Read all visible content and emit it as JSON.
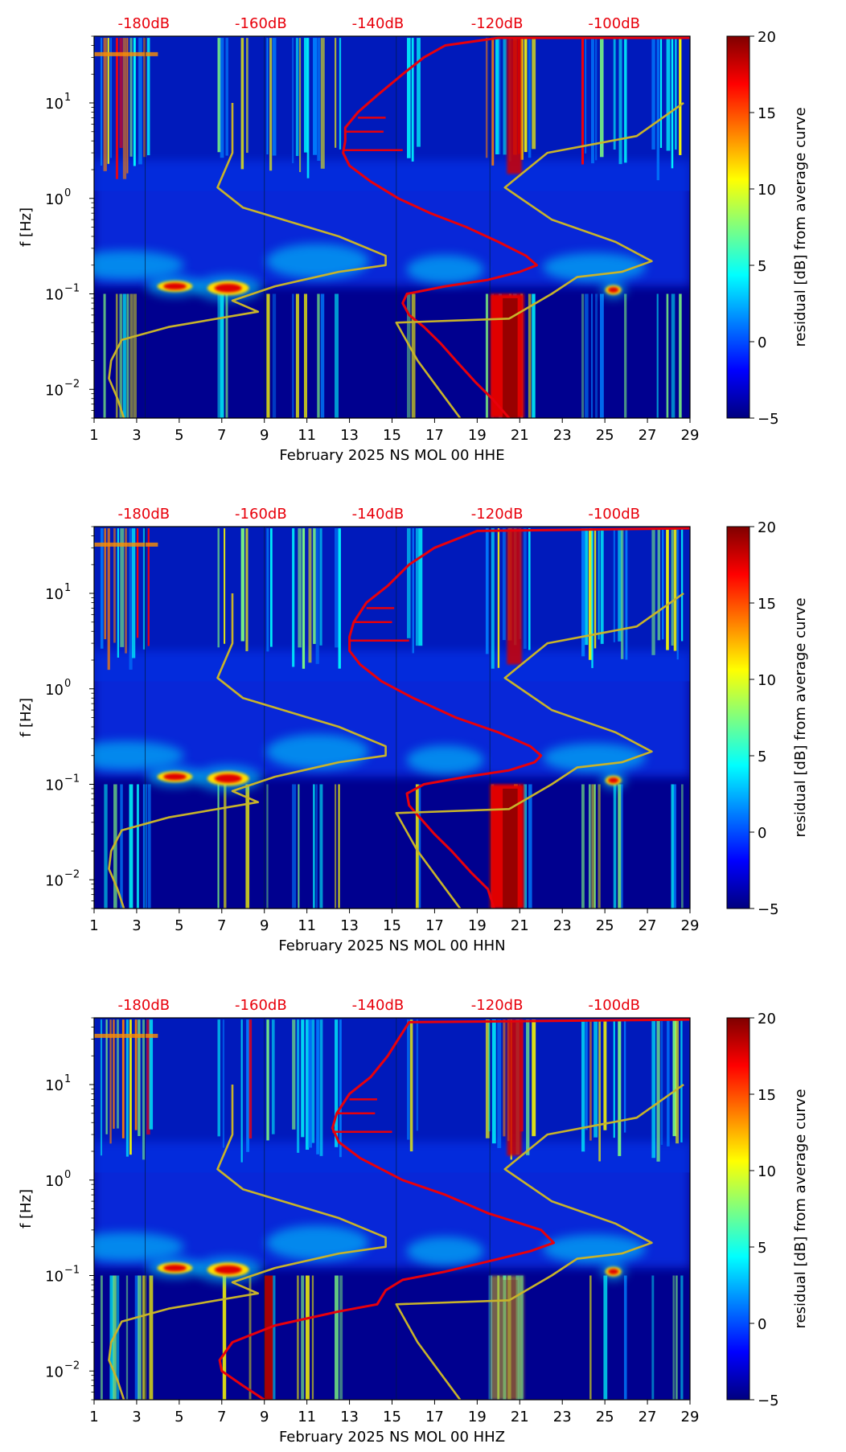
{
  "colors": {
    "noise_curve": "#e8000b",
    "model_curve": "#c8b32a",
    "db_labels": "#e8000b",
    "colormap": [
      "#00007f",
      "#0000ff",
      "#007fff",
      "#00ffff",
      "#7fff7f",
      "#ffff00",
      "#ff7f00",
      "#ff0000",
      "#7f0000"
    ]
  },
  "chart_data": [
    {
      "type": "heatmap",
      "panel": "top",
      "xlabel": "February 2025 NS MOL 00 HHE",
      "ylabel": "f [Hz]",
      "x_ticks": [
        "1",
        "3",
        "5",
        "7",
        "9",
        "11",
        "13",
        "15",
        "17",
        "19",
        "21",
        "23",
        "25",
        "27",
        "29"
      ],
      "xlim": [
        1,
        29
      ],
      "y_scale": "log",
      "ylim": [
        0.005,
        50
      ],
      "y_ticks": [
        0.01,
        0.1,
        1,
        10
      ],
      "y_tick_labels": [
        "10",
        "10",
        "10",
        "10"
      ],
      "y_tick_exponents": [
        "−2",
        "−1",
        "0",
        "1"
      ],
      "top_labels": [
        "-180dB",
        "-160dB",
        "-140dB",
        "-120dB",
        "-100dB"
      ],
      "colorbar": {
        "label": "residual [dB] from average curve",
        "ticks": [
          "−5",
          "0",
          "5",
          "10",
          "15",
          "20"
        ],
        "range": [
          -5,
          20
        ]
      },
      "series": [
        {
          "role": "red-curve",
          "points": [
            [
              20.5,
              0.005
            ],
            [
              19.7,
              0.008
            ],
            [
              18.9,
              0.012
            ],
            [
              18.0,
              0.02
            ],
            [
              17.3,
              0.03
            ],
            [
              16.5,
              0.045
            ],
            [
              15.8,
              0.06
            ],
            [
              15.5,
              0.08
            ],
            [
              15.7,
              0.1
            ],
            [
              17.5,
              0.12
            ],
            [
              19.5,
              0.14
            ],
            [
              21.0,
              0.17
            ],
            [
              21.8,
              0.2
            ],
            [
              21.3,
              0.25
            ],
            [
              20.0,
              0.35
            ],
            [
              18.5,
              0.5
            ],
            [
              16.8,
              0.7
            ],
            [
              15.3,
              1.0
            ],
            [
              14.0,
              1.5
            ],
            [
              13.0,
              2.2
            ],
            [
              12.7,
              3.0
            ],
            [
              12.8,
              4.0
            ],
            [
              12.8,
              5.5
            ],
            [
              13.4,
              8
            ],
            [
              14.3,
              12
            ],
            [
              15.5,
              20
            ],
            [
              16.5,
              30
            ],
            [
              17.5,
              40
            ],
            [
              20,
              48
            ],
            [
              29,
              48
            ]
          ]
        },
        {
          "role": "yellow-curve",
          "points": [
            [
              2.4,
              0.005
            ],
            [
              2.1,
              0.008
            ],
            [
              1.7,
              0.013
            ],
            [
              1.8,
              0.02
            ],
            [
              2.3,
              0.033
            ],
            [
              4.5,
              0.045
            ],
            [
              8.7,
              0.065
            ],
            [
              7.5,
              0.085
            ],
            [
              9.5,
              0.12
            ],
            [
              12.5,
              0.17
            ],
            [
              14.7,
              0.2
            ],
            [
              14.7,
              0.25
            ],
            [
              12.5,
              0.4
            ],
            [
              8.0,
              0.8
            ],
            [
              6.8,
              1.3
            ],
            [
              7.5,
              3.0
            ],
            [
              7.5,
              10
            ]
          ]
        },
        {
          "role": "yellow-curve",
          "points": [
            [
              18.2,
              0.005
            ],
            [
              17.2,
              0.01
            ],
            [
              16.2,
              0.02
            ],
            [
              15.2,
              0.05
            ],
            [
              20.5,
              0.055
            ],
            [
              22.5,
              0.1
            ],
            [
              23.7,
              0.15
            ],
            [
              25.8,
              0.17
            ],
            [
              27.2,
              0.22
            ],
            [
              25.5,
              0.35
            ],
            [
              22.5,
              0.6
            ],
            [
              20.3,
              1.3
            ],
            [
              22.3,
              3.0
            ],
            [
              26.5,
              4.5
            ],
            [
              28.7,
              10
            ]
          ]
        }
      ]
    },
    {
      "type": "heatmap",
      "panel": "middle",
      "xlabel": "February 2025 NS MOL 00 HHN",
      "ylabel": "f [Hz]",
      "x_ticks": [
        "1",
        "3",
        "5",
        "7",
        "9",
        "11",
        "13",
        "15",
        "17",
        "19",
        "21",
        "23",
        "25",
        "27",
        "29"
      ],
      "xlim": [
        1,
        29
      ],
      "y_scale": "log",
      "ylim": [
        0.005,
        50
      ],
      "y_ticks": [
        0.01,
        0.1,
        1,
        10
      ],
      "y_tick_labels": [
        "10",
        "10",
        "10",
        "10"
      ],
      "y_tick_exponents": [
        "−2",
        "−1",
        "0",
        "1"
      ],
      "top_labels": [
        "-180dB",
        "-160dB",
        "-140dB",
        "-120dB",
        "-100dB"
      ],
      "colorbar": {
        "label": "residual [dB] from average curve",
        "ticks": [
          "−5",
          "0",
          "5",
          "10",
          "15",
          "20"
        ],
        "range": [
          -5,
          20
        ]
      },
      "series": [
        {
          "role": "red-curve",
          "points": [
            [
              19.8,
              0.005
            ],
            [
              19.5,
              0.008
            ],
            [
              18.7,
              0.012
            ],
            [
              17.8,
              0.02
            ],
            [
              17.0,
              0.03
            ],
            [
              16.3,
              0.045
            ],
            [
              15.8,
              0.06
            ],
            [
              15.7,
              0.08
            ],
            [
              16.5,
              0.1
            ],
            [
              18.5,
              0.12
            ],
            [
              20.5,
              0.14
            ],
            [
              21.7,
              0.17
            ],
            [
              22.0,
              0.2
            ],
            [
              21.5,
              0.25
            ],
            [
              20.0,
              0.35
            ],
            [
              18.0,
              0.5
            ],
            [
              16.0,
              0.8
            ],
            [
              14.5,
              1.2
            ],
            [
              13.5,
              1.8
            ],
            [
              13.0,
              2.5
            ],
            [
              13.0,
              3.5
            ],
            [
              13.2,
              5
            ],
            [
              13.8,
              8
            ],
            [
              14.8,
              12
            ],
            [
              15.8,
              20
            ],
            [
              17.0,
              30
            ],
            [
              19.0,
              45
            ],
            [
              29,
              48
            ]
          ]
        },
        {
          "role": "yellow-curve",
          "points": [
            [
              2.4,
              0.005
            ],
            [
              2.1,
              0.008
            ],
            [
              1.7,
              0.013
            ],
            [
              1.8,
              0.02
            ],
            [
              2.3,
              0.033
            ],
            [
              4.5,
              0.045
            ],
            [
              8.7,
              0.065
            ],
            [
              7.5,
              0.085
            ],
            [
              9.5,
              0.12
            ],
            [
              12.5,
              0.17
            ],
            [
              14.7,
              0.2
            ],
            [
              14.7,
              0.25
            ],
            [
              12.5,
              0.4
            ],
            [
              8.0,
              0.8
            ],
            [
              6.8,
              1.3
            ],
            [
              7.5,
              3.0
            ],
            [
              7.5,
              10
            ]
          ]
        },
        {
          "role": "yellow-curve",
          "points": [
            [
              18.2,
              0.005
            ],
            [
              17.2,
              0.01
            ],
            [
              16.2,
              0.02
            ],
            [
              15.2,
              0.05
            ],
            [
              20.5,
              0.055
            ],
            [
              22.5,
              0.1
            ],
            [
              23.7,
              0.15
            ],
            [
              25.8,
              0.17
            ],
            [
              27.2,
              0.22
            ],
            [
              25.5,
              0.35
            ],
            [
              22.5,
              0.6
            ],
            [
              20.3,
              1.3
            ],
            [
              22.3,
              3.0
            ],
            [
              26.5,
              4.5
            ],
            [
              28.7,
              10
            ]
          ]
        }
      ]
    },
    {
      "type": "heatmap",
      "panel": "bottom",
      "xlabel": "February 2025 NS MOL 00 HHZ",
      "ylabel": "f [Hz]",
      "x_ticks": [
        "1",
        "3",
        "5",
        "7",
        "9",
        "11",
        "13",
        "15",
        "17",
        "19",
        "21",
        "23",
        "25",
        "27",
        "29"
      ],
      "xlim": [
        1,
        29
      ],
      "y_scale": "log",
      "ylim": [
        0.005,
        50
      ],
      "y_ticks": [
        0.01,
        0.1,
        1,
        10
      ],
      "y_tick_labels": [
        "10",
        "10",
        "10",
        "10"
      ],
      "y_tick_exponents": [
        "−2",
        "−1",
        "0",
        "1"
      ],
      "top_labels": [
        "-180dB",
        "-160dB",
        "-140dB",
        "-120dB",
        "-100dB"
      ],
      "colorbar": {
        "label": "residual [dB] from average curve",
        "ticks": [
          "−5",
          "0",
          "5",
          "10",
          "15",
          "20"
        ],
        "range": [
          -5,
          20
        ]
      },
      "series": [
        {
          "role": "red-curve",
          "points": [
            [
              9.0,
              0.005
            ],
            [
              8.0,
              0.007
            ],
            [
              7.0,
              0.01
            ],
            [
              6.9,
              0.013
            ],
            [
              7.5,
              0.02
            ],
            [
              9.5,
              0.03
            ],
            [
              12.5,
              0.042
            ],
            [
              14.3,
              0.05
            ],
            [
              14.7,
              0.07
            ],
            [
              15.5,
              0.09
            ],
            [
              17.5,
              0.11
            ],
            [
              19.5,
              0.14
            ],
            [
              21.5,
              0.18
            ],
            [
              22.6,
              0.22
            ],
            [
              22.0,
              0.3
            ],
            [
              19.5,
              0.45
            ],
            [
              17.5,
              0.7
            ],
            [
              15.5,
              1.0
            ],
            [
              13.5,
              1.7
            ],
            [
              12.5,
              2.5
            ],
            [
              12.2,
              3.5
            ],
            [
              12.4,
              5
            ],
            [
              13.0,
              8
            ],
            [
              14.0,
              12
            ],
            [
              14.8,
              20
            ],
            [
              15.3,
              30
            ],
            [
              15.8,
              45
            ],
            [
              29,
              48
            ]
          ]
        },
        {
          "role": "yellow-curve",
          "points": [
            [
              2.4,
              0.005
            ],
            [
              2.1,
              0.008
            ],
            [
              1.7,
              0.013
            ],
            [
              1.8,
              0.02
            ],
            [
              2.3,
              0.033
            ],
            [
              4.5,
              0.045
            ],
            [
              8.7,
              0.065
            ],
            [
              7.5,
              0.085
            ],
            [
              9.5,
              0.12
            ],
            [
              12.5,
              0.17
            ],
            [
              14.7,
              0.2
            ],
            [
              14.7,
              0.25
            ],
            [
              12.5,
              0.4
            ],
            [
              8.0,
              0.8
            ],
            [
              6.8,
              1.3
            ],
            [
              7.5,
              3.0
            ],
            [
              7.5,
              10
            ]
          ]
        },
        {
          "role": "yellow-curve",
          "points": [
            [
              18.2,
              0.005
            ],
            [
              17.2,
              0.01
            ],
            [
              16.2,
              0.02
            ],
            [
              15.2,
              0.05
            ],
            [
              20.5,
              0.055
            ],
            [
              22.5,
              0.1
            ],
            [
              23.7,
              0.15
            ],
            [
              25.8,
              0.17
            ],
            [
              27.2,
              0.22
            ],
            [
              25.5,
              0.35
            ],
            [
              22.5,
              0.6
            ],
            [
              20.3,
              1.3
            ],
            [
              22.3,
              3.0
            ],
            [
              26.5,
              4.5
            ],
            [
              28.7,
              10
            ]
          ]
        }
      ]
    }
  ]
}
